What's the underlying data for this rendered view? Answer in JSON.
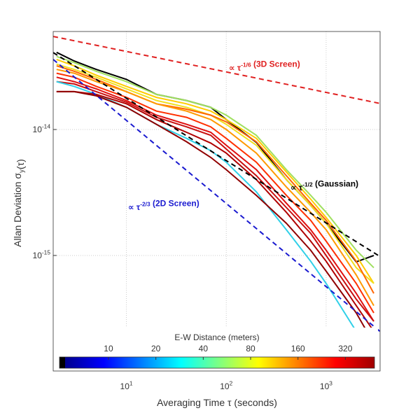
{
  "chart_data": {
    "type": "line",
    "log_x": true,
    "log_y": true,
    "grid": true,
    "xlabel": "Averaging Time τ (seconds)",
    "ylabel": "Allan Deviation σ_{y}(τ)",
    "xlim": [
      1.85,
      3470
    ],
    "ylim": [
      1.21e-16,
      6e-14
    ],
    "xticks": [
      {
        "value": 10,
        "label": "10^{1}"
      },
      {
        "value": 100,
        "label": "10^{2}"
      },
      {
        "value": 1000,
        "label": "10^{3}"
      }
    ],
    "yticks": [
      {
        "value": 1e-15,
        "label": "10^{-15}"
      },
      {
        "value": 1e-14,
        "label": "10^{-14}"
      }
    ],
    "x": [
      2,
      3,
      5,
      10,
      20,
      40,
      70,
      100,
      200,
      400,
      700,
      1000,
      2000,
      3000
    ],
    "series": [
      {
        "color": "#000000",
        "values": [
          4.1e-14,
          3.5e-14,
          3e-14,
          2.5e-14,
          1.9e-14,
          1.7e-14,
          1.5e-14,
          1.2e-14,
          7.9e-15,
          4e-15,
          2.5e-15,
          1.8e-15,
          8.9e-16,
          1e-15
        ]
      },
      {
        "color": "#a0e060",
        "values": [
          3.8e-14,
          3.4e-14,
          2.9e-14,
          2.4e-14,
          1.9e-14,
          1.7e-14,
          1.5e-14,
          1.3e-14,
          9e-15,
          4.8e-15,
          3e-15,
          2.2e-15,
          1.1e-15,
          8e-16
        ]
      },
      {
        "color": "#ffcc00",
        "values": [
          3.6e-14,
          3.2e-14,
          2.7e-14,
          2.2e-14,
          1.8e-14,
          1.6e-14,
          1.4e-14,
          1.2e-14,
          8.5e-15,
          4.6e-15,
          2.8e-15,
          2e-15,
          1e-15,
          6e-16
        ]
      },
      {
        "color": "#f0e020",
        "values": [
          3.3e-14,
          3e-14,
          2.6e-14,
          2.1e-14,
          1.7e-14,
          1.5e-14,
          1.3e-14,
          1.1e-14,
          7.5e-15,
          4e-15,
          2.5e-15,
          1.8e-15,
          8e-16,
          6e-16
        ]
      },
      {
        "color": "#ff6600",
        "values": [
          3.2e-14,
          2.9e-14,
          2.5e-14,
          2e-14,
          1.6e-14,
          1.45e-14,
          1.3e-14,
          1.15e-14,
          8e-15,
          4.3e-15,
          2.6e-15,
          1.9e-15,
          9e-16,
          5e-16
        ]
      },
      {
        "color": "#ff9900",
        "values": [
          3e-14,
          2.8e-14,
          2.4e-14,
          2e-14,
          1.6e-14,
          1.4e-14,
          1.2e-14,
          1e-14,
          6.5e-15,
          3.5e-15,
          2.2e-15,
          1.6e-15,
          7e-16,
          4e-16
        ]
      },
      {
        "color": "#ff3000",
        "values": [
          2.8e-14,
          2.6e-14,
          2.2e-14,
          1.8e-14,
          1.4e-14,
          1.25e-14,
          1.05e-14,
          8.5e-15,
          5.5e-15,
          3e-15,
          1.9e-15,
          1.3e-15,
          6e-16,
          3.5e-16
        ]
      },
      {
        "color": "#e01010",
        "values": [
          2.6e-14,
          2.4e-14,
          2.1e-14,
          1.7e-14,
          1.3e-14,
          1.1e-14,
          9.5e-15,
          7.5e-15,
          4.8e-15,
          2.6e-15,
          1.6e-15,
          1.1e-15,
          5e-16,
          3e-16
        ]
      },
      {
        "color": "#c81010",
        "values": [
          2.4e-14,
          2.3e-14,
          2e-14,
          1.65e-14,
          1.25e-14,
          1.05e-14,
          9e-15,
          7e-15,
          4.3e-15,
          2.4e-15,
          1.5e-15,
          1e-15,
          4.5e-16,
          3e-16
        ]
      },
      {
        "color": "#30d0e8",
        "values": [
          2.4e-14,
          2.2e-14,
          1.9e-14,
          1.5e-14,
          1.1e-14,
          8.5e-15,
          6.8e-15,
          5.5e-15,
          3.2e-15,
          1.6e-15,
          9e-16,
          6e-16,
          2.5e-16,
          1.5e-16
        ]
      },
      {
        "color": "#b00000",
        "values": [
          2e-14,
          2e-14,
          1.9e-14,
          1.6e-14,
          1.2e-14,
          9.5e-15,
          7.8e-15,
          6.5e-15,
          4e-15,
          2.2e-15,
          1.3e-15,
          9e-16,
          4e-16,
          2.5e-16
        ]
      },
      {
        "color": "#900000",
        "values": [
          2e-14,
          2e-14,
          1.85e-14,
          1.5e-14,
          1.1e-14,
          8e-15,
          6e-15,
          4.8e-15,
          3e-15,
          1.8e-15,
          1.1e-15,
          7.5e-16,
          3.5e-16,
          2e-16
        ]
      }
    ],
    "reference_lines": [
      {
        "color": "#e02020",
        "x": [
          1.85,
          3470
        ],
        "values": [
          5.48e-14,
          1.61e-14
        ]
      },
      {
        "color": "#000000",
        "x": [
          1.85,
          3470
        ],
        "values": [
          4.08e-14,
          9.8e-16
        ]
      },
      {
        "color": "#1a1ad0",
        "x": [
          1.85,
          3470
        ],
        "values": [
          3.6e-14,
          2.49e-16
        ]
      }
    ],
    "annotations": [
      {
        "text": "∝ τ^{-1/6} (3D Screen)",
        "color": "#e02020"
      },
      {
        "text": "∝ τ^{-1/2} (Gaussian)",
        "color": "#000000"
      },
      {
        "text": "∝ τ^{-2/3} (2D Screen)",
        "color": "#1a1ad0"
      }
    ],
    "colorbar": {
      "title": "E-W Distance (meters)",
      "log": true,
      "clim": [
        5.3,
        490
      ],
      "ticks": [
        10,
        20,
        40,
        80,
        160,
        320
      ],
      "colors": [
        "#000000",
        "#00008f",
        "#0000ff",
        "#0080ff",
        "#00ffff",
        "#80ff80",
        "#ffff00",
        "#ff8000",
        "#ff0000",
        "#a00000"
      ]
    }
  }
}
